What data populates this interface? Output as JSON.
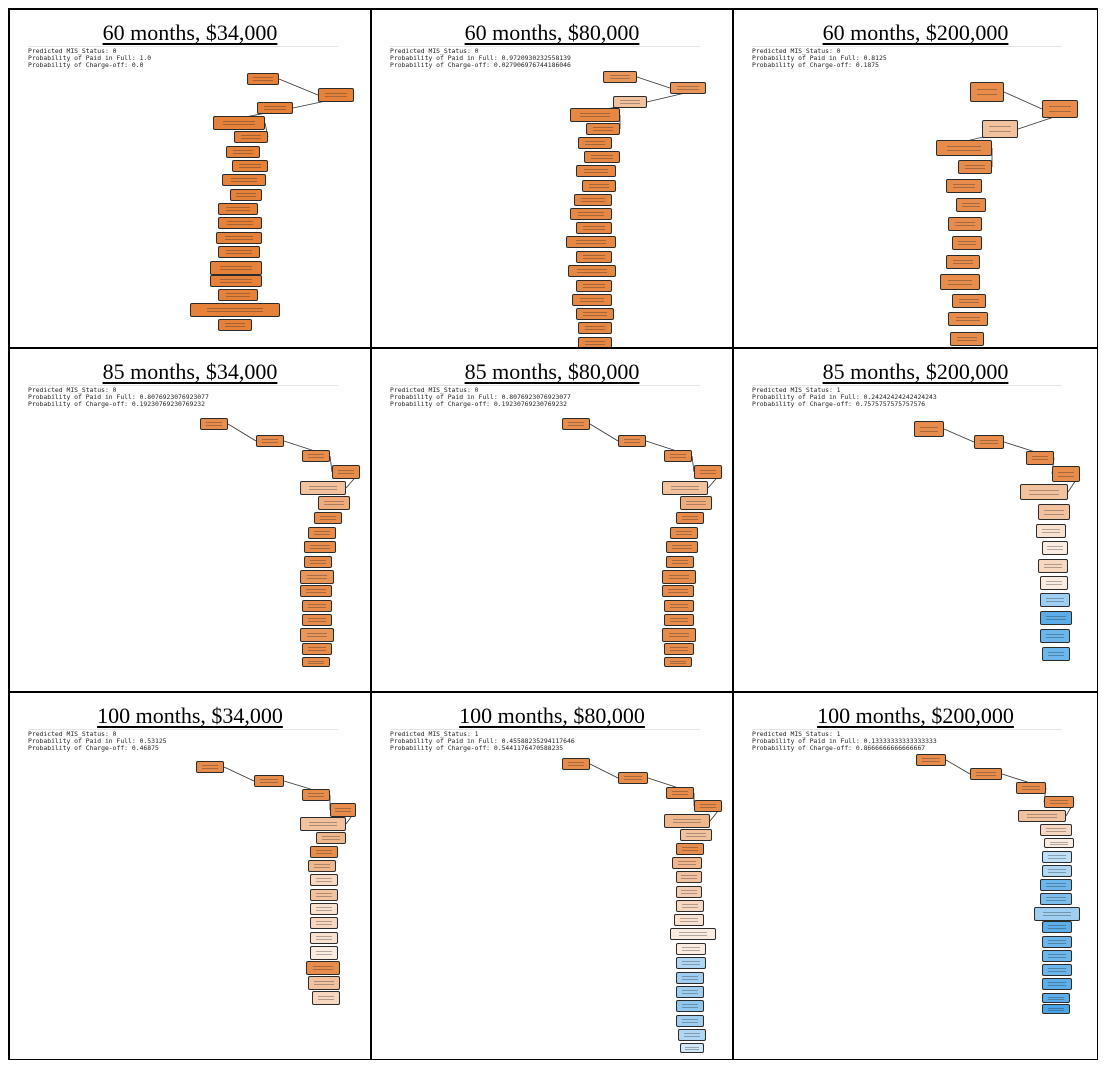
{
  "panels": [
    {
      "title": "60 months, $34,000",
      "status_line": "Predicted MIS_Status: 0",
      "paid_line": "Probability of Paid in Full: 1.0",
      "charge_line": "Probability of Charge-off: 0.0",
      "path_fill_paid_in_full": [
        1.0,
        1.0,
        1.0,
        1.0,
        1.0,
        1.0,
        1.0,
        1.0,
        1.0,
        1.0,
        1.0,
        1.0,
        1.0,
        1.0,
        1.0,
        1.0,
        1.0,
        1.0
      ]
    },
    {
      "title": "60 months, $80,000",
      "status_line": "Predicted MIS_Status: 0",
      "paid_line": "Probability of Paid in Full: 0.9720930232558139",
      "charge_line": "Probability of Charge-off: 0.027906976744186046",
      "path_fill_paid_in_full": [
        0.9,
        0.9,
        0.7,
        0.97,
        0.97,
        0.97,
        0.97,
        0.97,
        0.97,
        0.97,
        0.97,
        0.97,
        0.97,
        0.97,
        0.97,
        0.97,
        0.97,
        0.97,
        0.97,
        0.97,
        0.97
      ]
    },
    {
      "title": "60 months, $200,000",
      "status_line": "Predicted MIS_Status: 0",
      "paid_line": "Probability of Paid in Full: 0.8125",
      "charge_line": "Probability of Charge-off: 0.1875",
      "path_fill_paid_in_full": [
        0.95,
        0.95,
        0.7,
        0.95,
        0.95,
        0.95,
        0.95,
        0.95,
        0.95,
        0.95,
        0.95,
        0.95,
        0.95,
        0.95,
        0.7
      ]
    },
    {
      "title": "85 months, $34,000",
      "status_line": "Predicted MIS_Status: 0",
      "paid_line": "Probability of Paid in Full: 0.8076923076923077",
      "charge_line": "Probability of Charge-off: 0.19230769230769232",
      "path_fill_paid_in_full": [
        0.95,
        0.95,
        0.95,
        0.95,
        0.7,
        0.8,
        0.95,
        0.95,
        0.95,
        0.95,
        0.9,
        0.95,
        0.95,
        0.95,
        0.9,
        0.95,
        0.95
      ]
    },
    {
      "title": "85 months, $80,000",
      "status_line": "Predicted MIS_Status: 0",
      "paid_line": "Probability of Paid in Full: 0.8076923076923077",
      "charge_line": "Probability of Charge-off: 0.19230769230769232",
      "path_fill_paid_in_full": [
        0.95,
        0.95,
        0.95,
        0.95,
        0.7,
        0.8,
        0.95,
        0.95,
        0.95,
        0.95,
        0.95,
        0.95,
        0.95,
        0.95,
        0.95,
        0.95,
        0.95
      ]
    },
    {
      "title": "85 months, $200,000",
      "status_line": "Predicted MIS_Status: 1",
      "paid_line": "Probability of Paid in Full: 0.24242424242424243",
      "charge_line": "Probability of Charge-off: 0.7575757575757576",
      "path_fill_paid_in_full": [
        0.95,
        0.95,
        0.95,
        0.95,
        0.7,
        0.7,
        0.55,
        0.5,
        0.6,
        0.5,
        0.3,
        0.1,
        0.15,
        0.15
      ]
    },
    {
      "title": "100 months, $34,000",
      "status_line": "Predicted MIS_Status: 0",
      "paid_line": "Probability of Paid in Full: 0.53125",
      "charge_line": "Probability of Charge-off: 0.46875",
      "path_fill_paid_in_full": [
        0.95,
        0.95,
        0.95,
        0.95,
        0.7,
        0.75,
        0.95,
        0.75,
        0.6,
        0.7,
        0.55,
        0.6,
        0.55,
        0.5,
        0.95,
        0.7,
        0.6
      ]
    },
    {
      "title": "100 months, $80,000",
      "status_line": "Predicted MIS_Status: 1",
      "paid_line": "Probability of Paid in Full: 0.45588235294117646",
      "charge_line": "Probability of Charge-off: 0.5441176470588235",
      "path_fill_paid_in_full": [
        0.95,
        0.95,
        0.95,
        0.95,
        0.75,
        0.7,
        0.95,
        0.75,
        0.7,
        0.65,
        0.6,
        0.55,
        0.5,
        0.5,
        0.35,
        0.3,
        0.3,
        0.25,
        0.3,
        0.35,
        0.45
      ]
    },
    {
      "title": "100 months, $200,000",
      "status_line": "Predicted MIS_Status: 1",
      "paid_line": "Probability of Paid in Full: 0.13333333333333333",
      "charge_line": "Probability of Charge-off: 0.8666666666666667",
      "path_fill_paid_in_full": [
        0.95,
        0.95,
        0.95,
        0.95,
        0.7,
        0.6,
        0.5,
        0.4,
        0.35,
        0.15,
        0.2,
        0.3,
        0.1,
        0.15,
        0.15,
        0.15,
        0.1,
        0.1,
        0.05
      ]
    }
  ],
  "colors": {
    "paid_in_full": "#e58139",
    "charge_off": "#399de5",
    "neutral": "#ffffff",
    "border": "#000000"
  }
}
